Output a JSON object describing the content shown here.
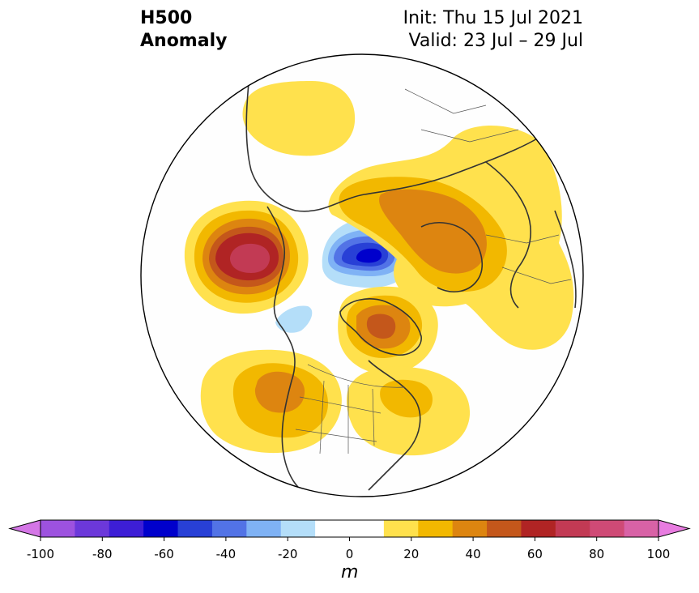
{
  "title": {
    "line1": "H500",
    "line2": "Anomaly"
  },
  "init_label": "Init: Thu 15 Jul 2021",
  "valid_label": "Valid: 23 Jul – 29 Jul",
  "colorbar": {
    "unit": "m",
    "ticks": [
      "-100",
      "-80",
      "-60",
      "-40",
      "-20",
      "0",
      "20",
      "40",
      "60",
      "80",
      "100"
    ],
    "colors": [
      "#d476e6",
      "#9d52df",
      "#6c38da",
      "#3d1ed6",
      "#0000cc",
      "#2840d6",
      "#5273e6",
      "#7fb2f5",
      "#b4def9",
      "#ffffff",
      "#ffffff",
      "#ffe14d",
      "#f2b800",
      "#dd8510",
      "#c4571b",
      "#b02424",
      "#c23a54",
      "#cf4a76",
      "#d862a6",
      "#e87ce0"
    ]
  },
  "anomalies": [
    {
      "region": "alaska-ridge",
      "level": 70
    },
    {
      "region": "central-arctic-trough",
      "level": -50
    },
    {
      "region": "siberia-ridge",
      "level": 40
    },
    {
      "region": "greenland-ridge",
      "level": 50
    },
    {
      "region": "western-na-ridge",
      "level": 40
    },
    {
      "region": "eastern-na-ridge",
      "level": 30
    }
  ]
}
